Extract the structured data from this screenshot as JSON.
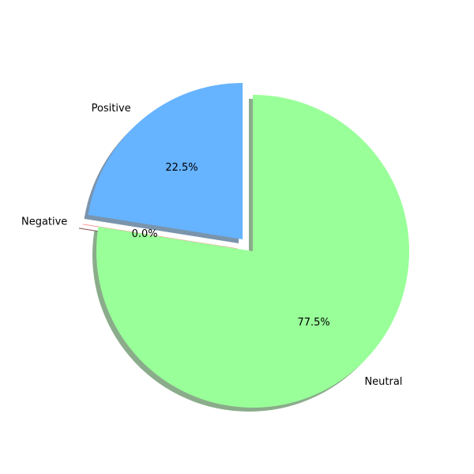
{
  "chart_data": {
    "type": "pie",
    "slices": [
      {
        "label": "Positive",
        "value": 22.5,
        "pct_label": "22.5%",
        "color": "#66b3ff",
        "exploded": true
      },
      {
        "label": "Negative",
        "value": 0.0,
        "pct_label": "0.0%",
        "color": "#ff9999",
        "exploded": true
      },
      {
        "label": "Neutral",
        "value": 77.5,
        "pct_label": "77.5%",
        "color": "#99ff99",
        "exploded": false
      }
    ],
    "start_angle_deg": 90,
    "direction": "counterclockwise",
    "shadow": true
  }
}
